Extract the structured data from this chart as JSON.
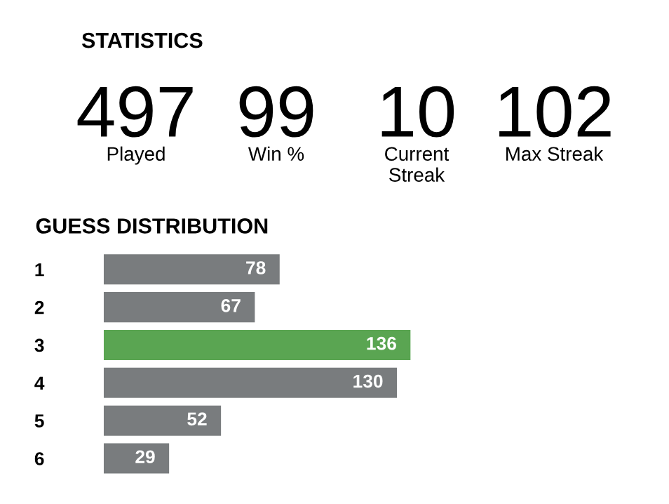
{
  "chart_data": [
    {
      "type": "other",
      "title": "STATISTICS",
      "annotations": [
        "497",
        "Played",
        "99",
        "Win %",
        "10",
        "Current\nStreak",
        "102",
        "Max Streak"
      ]
    },
    {
      "type": "bar",
      "orientation": "horizontal",
      "title": "GUESS DISTRIBUTION",
      "categories": [
        "1",
        "2",
        "3",
        "4",
        "5",
        "6"
      ],
      "values": [
        78,
        67,
        136,
        130,
        52,
        29
      ],
      "colors": [
        "#797c7e",
        "#797c7e",
        "#5aa552",
        "#797c7e",
        "#797c7e",
        "#797c7e"
      ],
      "data_labels": true,
      "grid": false,
      "legend": false
    }
  ]
}
